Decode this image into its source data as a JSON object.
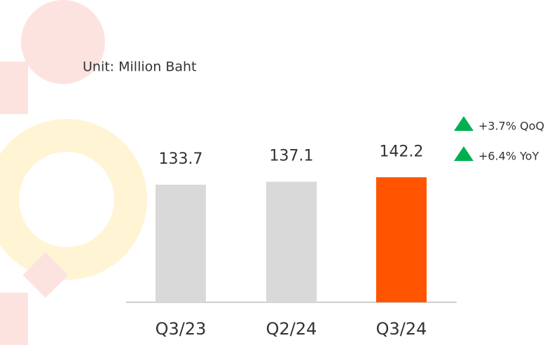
{
  "chart_data": {
    "type": "bar",
    "subtitle": "Unit: Million Baht",
    "categories": [
      "Q3/23",
      "Q2/24",
      "Q3/24"
    ],
    "values": [
      133.7,
      137.1,
      142.2
    ],
    "colors": [
      "#d9d9d9",
      "#d9d9d9",
      "#ff5500"
    ],
    "annotations": [
      "+3.7% QoQ",
      "+6.4% YoY"
    ]
  }
}
